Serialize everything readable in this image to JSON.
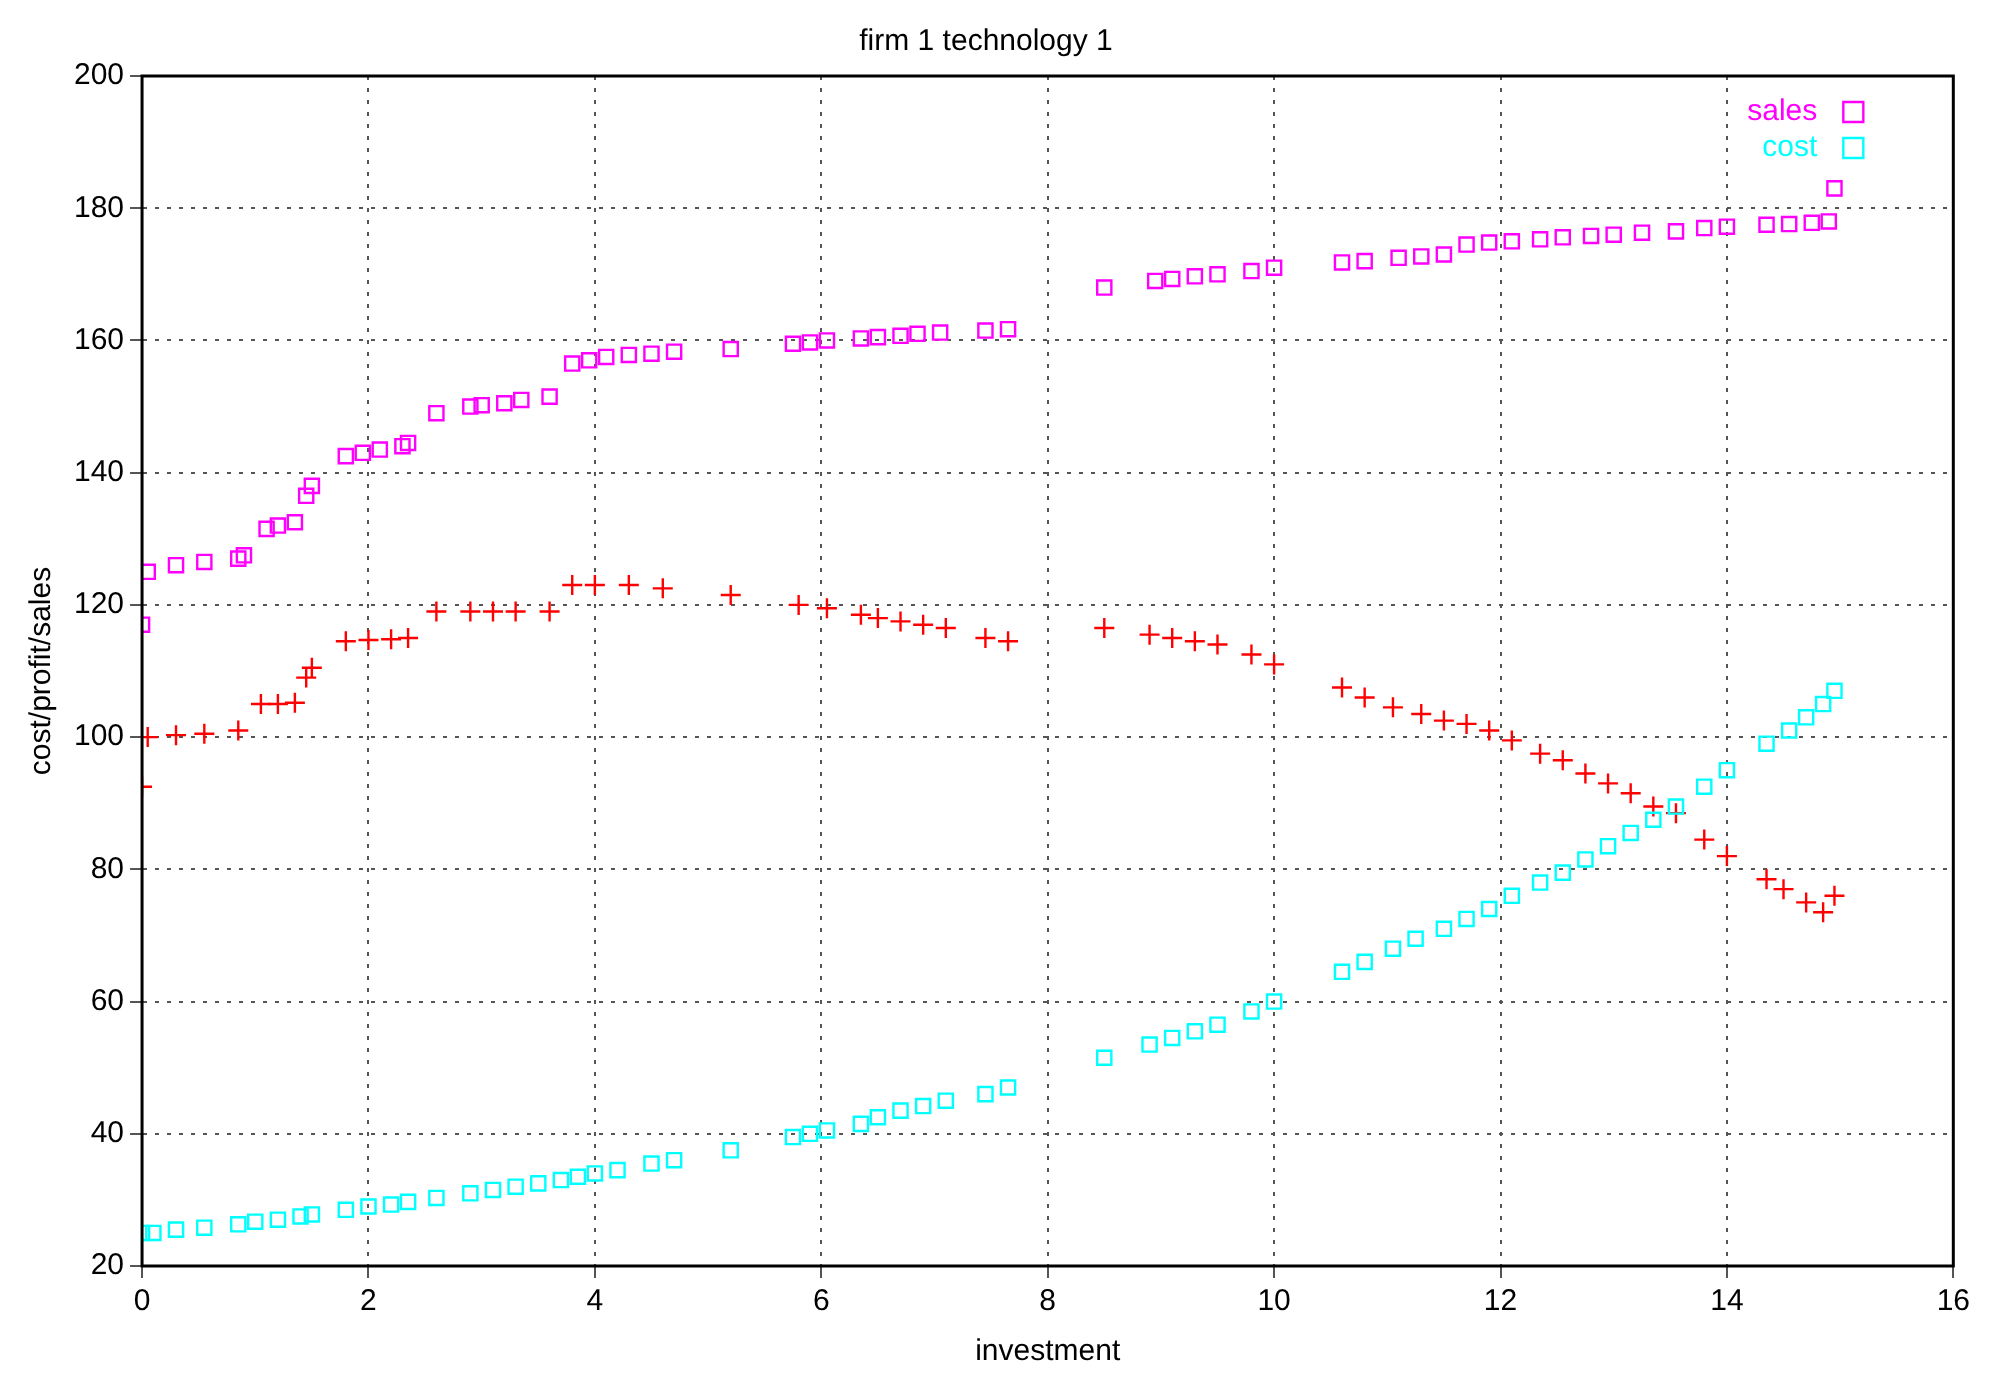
{
  "chart_data": {
    "type": "scatter",
    "title": "firm 1 technology 1",
    "xlabel": "investment",
    "ylabel": "cost/profit/sales",
    "xlim": [
      0,
      16
    ],
    "xticks": [
      0,
      2,
      4,
      6,
      8,
      10,
      12,
      14,
      16
    ],
    "ylim": [
      20,
      200
    ],
    "yticks": [
      20,
      40,
      60,
      80,
      100,
      120,
      140,
      160,
      180,
      200
    ],
    "grid": true,
    "legend": "top right",
    "series": [
      {
        "name": "sales",
        "color": "#ff00ff",
        "marker": "square",
        "x": [
          0,
          0.05,
          0.3,
          0.55,
          0.85,
          0.9,
          1.1,
          1.2,
          1.35,
          1.45,
          1.5,
          1.8,
          1.95,
          2.1,
          2.3,
          2.35,
          2.6,
          2.9,
          3.0,
          3.2,
          3.35,
          3.6,
          3.8,
          3.95,
          4.1,
          4.3,
          4.5,
          4.7,
          5.2,
          5.75,
          5.9,
          6.05,
          6.35,
          6.5,
          6.7,
          6.85,
          7.05,
          7.45,
          7.65,
          8.5,
          8.95,
          9.1,
          9.3,
          9.5,
          9.8,
          10,
          10.6,
          10.8,
          11.1,
          11.3,
          11.5,
          11.7,
          11.9,
          12.1,
          12.35,
          12.55,
          12.8,
          13.0,
          13.25,
          13.55,
          13.8,
          14.0,
          14.35,
          14.55,
          14.75,
          14.9,
          14.95
        ],
        "values": [
          117,
          125,
          126,
          126.5,
          127,
          127.5,
          131.5,
          132,
          132.5,
          136.5,
          138,
          142.5,
          143,
          143.5,
          144,
          144.5,
          149,
          150,
          150.2,
          150.5,
          151,
          151.5,
          156.5,
          157,
          157.5,
          157.8,
          158,
          158.3,
          158.7,
          159.5,
          159.7,
          160,
          160.3,
          160.5,
          160.7,
          161,
          161.2,
          161.5,
          161.7,
          168,
          169,
          169.3,
          169.7,
          170,
          170.5,
          171,
          171.8,
          172,
          172.5,
          172.7,
          173,
          174.5,
          174.8,
          175,
          175.3,
          175.6,
          175.8,
          176,
          176.3,
          176.5,
          177,
          177.2,
          177.5,
          177.6,
          177.8,
          178,
          183
        ]
      },
      {
        "name": "cost",
        "color": "#00ffff",
        "marker": "square",
        "x": [
          0,
          0.1,
          0.3,
          0.55,
          0.85,
          1.0,
          1.2,
          1.4,
          1.5,
          1.8,
          2.0,
          2.2,
          2.35,
          2.6,
          2.9,
          3.1,
          3.3,
          3.5,
          3.7,
          3.85,
          4.0,
          4.2,
          4.5,
          4.7,
          5.2,
          5.75,
          5.9,
          6.05,
          6.35,
          6.5,
          6.7,
          6.9,
          7.1,
          7.45,
          7.65,
          8.5,
          8.9,
          9.1,
          9.3,
          9.5,
          9.8,
          10,
          10.6,
          10.8,
          11.05,
          11.25,
          11.5,
          11.7,
          11.9,
          12.1,
          12.35,
          12.55,
          12.75,
          12.95,
          13.15,
          13.35,
          13.55,
          13.8,
          14.0,
          14.35,
          14.55,
          14.7,
          14.85,
          14.95
        ],
        "values": [
          25,
          25,
          25.5,
          25.8,
          26.3,
          26.7,
          27,
          27.5,
          27.8,
          28.5,
          29,
          29.3,
          29.7,
          30.3,
          31,
          31.5,
          32,
          32.5,
          33,
          33.5,
          34,
          34.5,
          35.5,
          36,
          37.5,
          39.5,
          40,
          40.5,
          41.5,
          42.5,
          43.5,
          44.2,
          45,
          46,
          47,
          51.5,
          53.5,
          54.5,
          55.5,
          56.5,
          58.5,
          60,
          64.5,
          66,
          68,
          69.5,
          71,
          72.5,
          74,
          76,
          78,
          79.5,
          81.5,
          83.5,
          85.5,
          87.5,
          89.5,
          92.5,
          95,
          99,
          101,
          103,
          105,
          107
        ]
      },
      {
        "color": "#ff0000",
        "marker": "cross",
        "x": [
          0,
          0.05,
          0.3,
          0.55,
          0.85,
          1.05,
          1.2,
          1.35,
          1.45,
          1.5,
          1.8,
          2.0,
          2.2,
          2.35,
          2.6,
          2.9,
          3.1,
          3.3,
          3.6,
          3.8,
          4.0,
          4.3,
          4.6,
          5.2,
          5.8,
          6.05,
          6.35,
          6.5,
          6.7,
          6.9,
          7.1,
          7.45,
          7.65,
          8.5,
          8.9,
          9.1,
          9.3,
          9.5,
          9.8,
          10,
          10.6,
          10.8,
          11.05,
          11.3,
          11.5,
          11.7,
          11.9,
          12.1,
          12.35,
          12.55,
          12.75,
          12.95,
          13.15,
          13.35,
          13.55,
          13.8,
          14.0,
          14.35,
          14.5,
          14.7,
          14.85,
          14.95
        ],
        "values": [
          92.5,
          100,
          100.3,
          100.5,
          101,
          105,
          105,
          105.2,
          109,
          110.5,
          114.5,
          114.7,
          114.8,
          115,
          119,
          119,
          119,
          119,
          119,
          123,
          123,
          123,
          122.5,
          121.5,
          120,
          119.5,
          118.5,
          118,
          117.5,
          117,
          116.5,
          115,
          114.5,
          116.5,
          115.5,
          115,
          114.5,
          114,
          112.5,
          111,
          107.5,
          106,
          104.5,
          103.5,
          102.5,
          102,
          101,
          99.5,
          97.5,
          96.5,
          94.5,
          93,
          91.5,
          89.5,
          88.5,
          84.5,
          82,
          78.5,
          77,
          75,
          73.5,
          76
        ]
      }
    ]
  }
}
